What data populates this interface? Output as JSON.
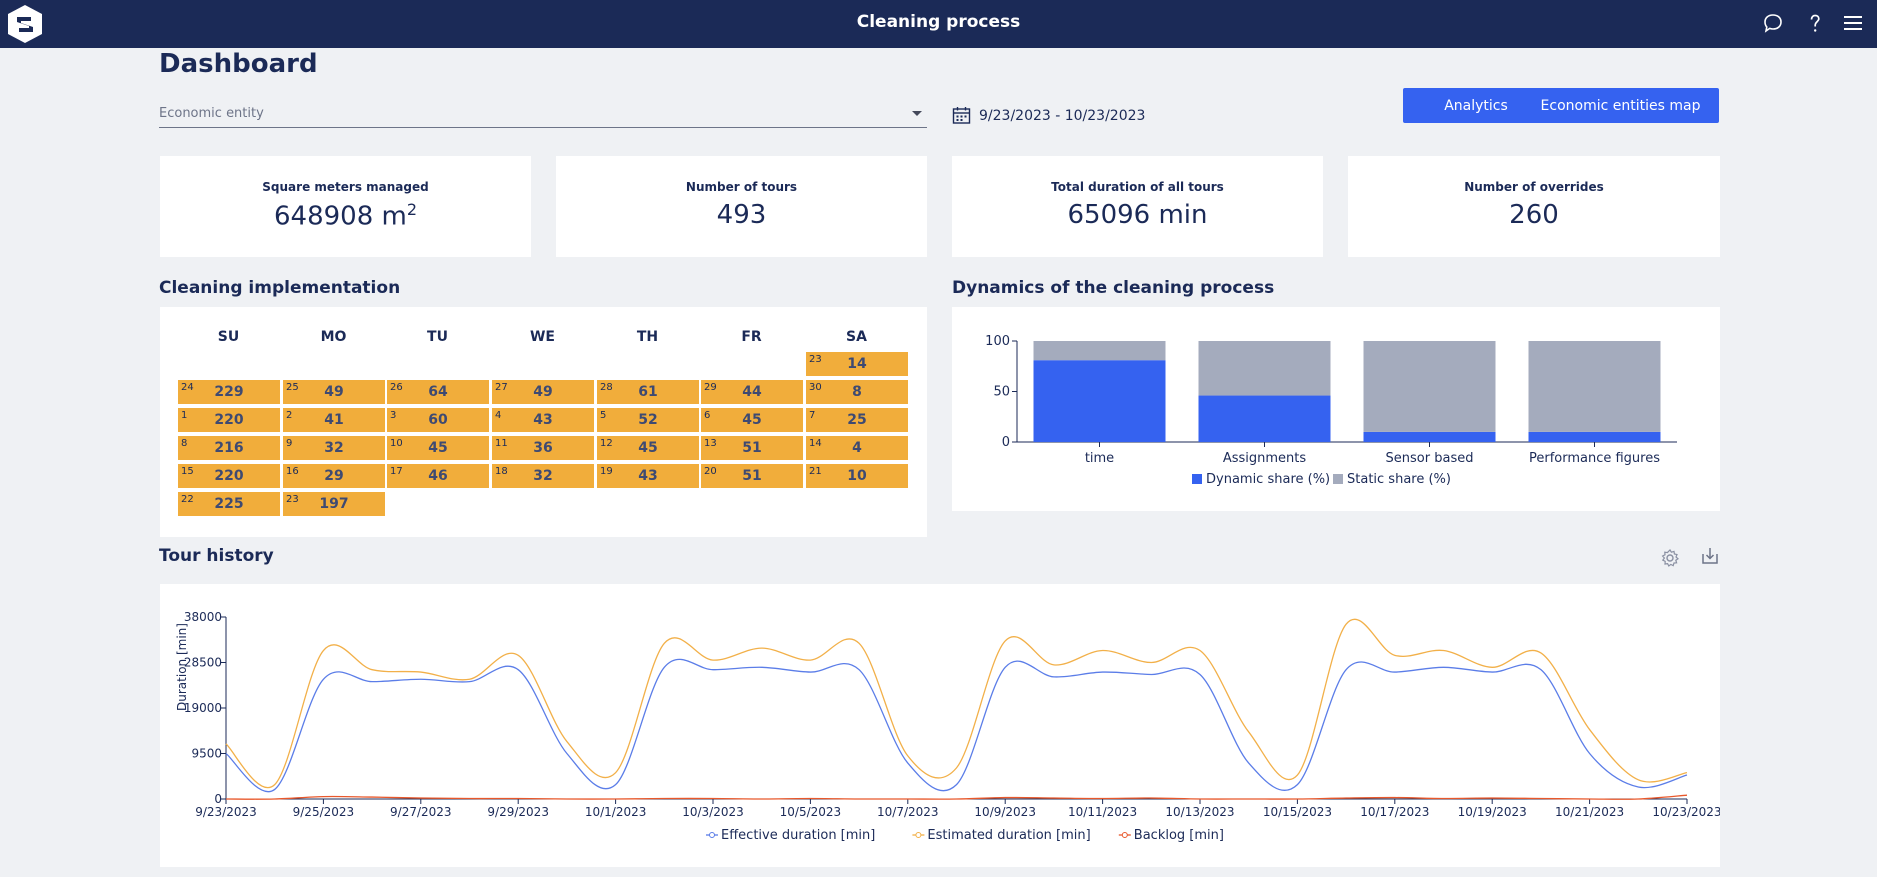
{
  "app": {
    "title": "Cleaning process",
    "icons": [
      "logo",
      "chat-icon",
      "help-icon",
      "menu-icon"
    ]
  },
  "page": {
    "title": "Dashboard"
  },
  "filters": {
    "entity_placeholder": "Economic entity",
    "date_range": "9/23/2023 - 10/23/2023"
  },
  "buttons": {
    "analytics": "Analytics",
    "map": "Economic entities map"
  },
  "kpis": [
    {
      "label": "Square meters managed",
      "value": "648908 m",
      "sup": "2"
    },
    {
      "label": "Number of tours",
      "value": "493"
    },
    {
      "label": "Total duration of all tours",
      "value": "65096 min"
    },
    {
      "label": "Number of overrides",
      "value": "260"
    }
  ],
  "calendar": {
    "title": "Cleaning implementation",
    "days": [
      "SU",
      "MO",
      "TU",
      "WE",
      "TH",
      "FR",
      "SA"
    ],
    "cell_color": "#f1ad3b",
    "weeks": [
      [
        null,
        null,
        null,
        null,
        null,
        null,
        {
          "d": "23",
          "v": "14"
        }
      ],
      [
        {
          "d": "24",
          "v": "229"
        },
        {
          "d": "25",
          "v": "49"
        },
        {
          "d": "26",
          "v": "64"
        },
        {
          "d": "27",
          "v": "49"
        },
        {
          "d": "28",
          "v": "61"
        },
        {
          "d": "29",
          "v": "44"
        },
        {
          "d": "30",
          "v": "8"
        }
      ],
      [
        {
          "d": "1",
          "v": "220"
        },
        {
          "d": "2",
          "v": "41"
        },
        {
          "d": "3",
          "v": "60"
        },
        {
          "d": "4",
          "v": "43"
        },
        {
          "d": "5",
          "v": "52"
        },
        {
          "d": "6",
          "v": "45"
        },
        {
          "d": "7",
          "v": "25"
        }
      ],
      [
        {
          "d": "8",
          "v": "216"
        },
        {
          "d": "9",
          "v": "32"
        },
        {
          "d": "10",
          "v": "45"
        },
        {
          "d": "11",
          "v": "36"
        },
        {
          "d": "12",
          "v": "45"
        },
        {
          "d": "13",
          "v": "51"
        },
        {
          "d": "14",
          "v": "4"
        }
      ],
      [
        {
          "d": "15",
          "v": "220"
        },
        {
          "d": "16",
          "v": "29"
        },
        {
          "d": "17",
          "v": "46"
        },
        {
          "d": "18",
          "v": "32"
        },
        {
          "d": "19",
          "v": "43"
        },
        {
          "d": "20",
          "v": "51"
        },
        {
          "d": "21",
          "v": "10"
        }
      ],
      [
        {
          "d": "22",
          "v": "225"
        },
        {
          "d": "23",
          "v": "197"
        },
        null,
        null,
        null,
        null,
        null
      ]
    ]
  },
  "dynamics": {
    "title": "Dynamics of the cleaning process"
  },
  "tour_history": {
    "title": "Tour history",
    "icons": [
      "gear-icon",
      "download-icon"
    ]
  },
  "chart_data": [
    {
      "type": "bar",
      "stacked": true,
      "categories": [
        "time",
        "Assignments",
        "Sensor based",
        "Performance figures"
      ],
      "series": [
        {
          "name": "Dynamic share (%)",
          "color": "#3562f0",
          "values": [
            81,
            46,
            10,
            10
          ]
        },
        {
          "name": "Static share (%)",
          "color": "#a4abbd",
          "values": [
            19,
            54,
            90,
            90
          ]
        }
      ],
      "ylim": [
        0,
        100
      ],
      "yticks": [
        0,
        50,
        100
      ],
      "legend": "bottom"
    },
    {
      "type": "line",
      "ylabel": "Duration [min]",
      "ylim": [
        0,
        38000
      ],
      "yticks": [
        0,
        9500,
        19000,
        28500,
        38000
      ],
      "xtick_labels": [
        "9/23/2023",
        "9/25/2023",
        "9/27/2023",
        "9/29/2023",
        "10/1/2023",
        "10/3/2023",
        "10/5/2023",
        "10/7/2023",
        "10/9/2023",
        "10/11/2023",
        "10/13/2023",
        "10/15/2023",
        "10/17/2023",
        "10/19/2023",
        "10/21/2023",
        "10/23/2023"
      ],
      "x": [
        "9/23/2023",
        "9/24/2023",
        "9/25/2023",
        "9/26/2023",
        "9/27/2023",
        "9/28/2023",
        "9/29/2023",
        "9/30/2023",
        "10/1/2023",
        "10/2/2023",
        "10/3/2023",
        "10/4/2023",
        "10/5/2023",
        "10/6/2023",
        "10/7/2023",
        "10/8/2023",
        "10/9/2023",
        "10/10/2023",
        "10/11/2023",
        "10/12/2023",
        "10/13/2023",
        "10/14/2023",
        "10/15/2023",
        "10/16/2023",
        "10/17/2023",
        "10/18/2023",
        "10/19/2023",
        "10/20/2023",
        "10/21/2023",
        "10/22/2023",
        "10/23/2023"
      ],
      "legend": "bottom",
      "series": [
        {
          "name": "Effective duration [min]",
          "color": "#5b7de8",
          "values": [
            9500,
            2000,
            25000,
            24500,
            25000,
            24500,
            27000,
            9500,
            3000,
            27500,
            27000,
            27500,
            26500,
            27000,
            7500,
            3000,
            27500,
            25500,
            26500,
            26000,
            26000,
            7500,
            3000,
            27000,
            26500,
            27500,
            26500,
            27000,
            9500,
            2500,
            5000
          ]
        },
        {
          "name": "Estimated duration [min]",
          "color": "#f2b049",
          "values": [
            11500,
            3000,
            31000,
            27000,
            26500,
            25000,
            30000,
            12000,
            5500,
            32500,
            29000,
            31500,
            29000,
            32500,
            9000,
            6500,
            33000,
            28000,
            31000,
            28500,
            31000,
            14000,
            5000,
            36500,
            30000,
            31000,
            27500,
            30500,
            14500,
            4000,
            5500
          ]
        },
        {
          "name": "Backlog [min]",
          "color": "#e8582b",
          "values": [
            0,
            0,
            500,
            400,
            200,
            100,
            100,
            0,
            0,
            100,
            100,
            0,
            100,
            0,
            0,
            0,
            300,
            200,
            100,
            200,
            0,
            0,
            0,
            200,
            300,
            100,
            200,
            100,
            0,
            0,
            800
          ]
        }
      ]
    }
  ]
}
